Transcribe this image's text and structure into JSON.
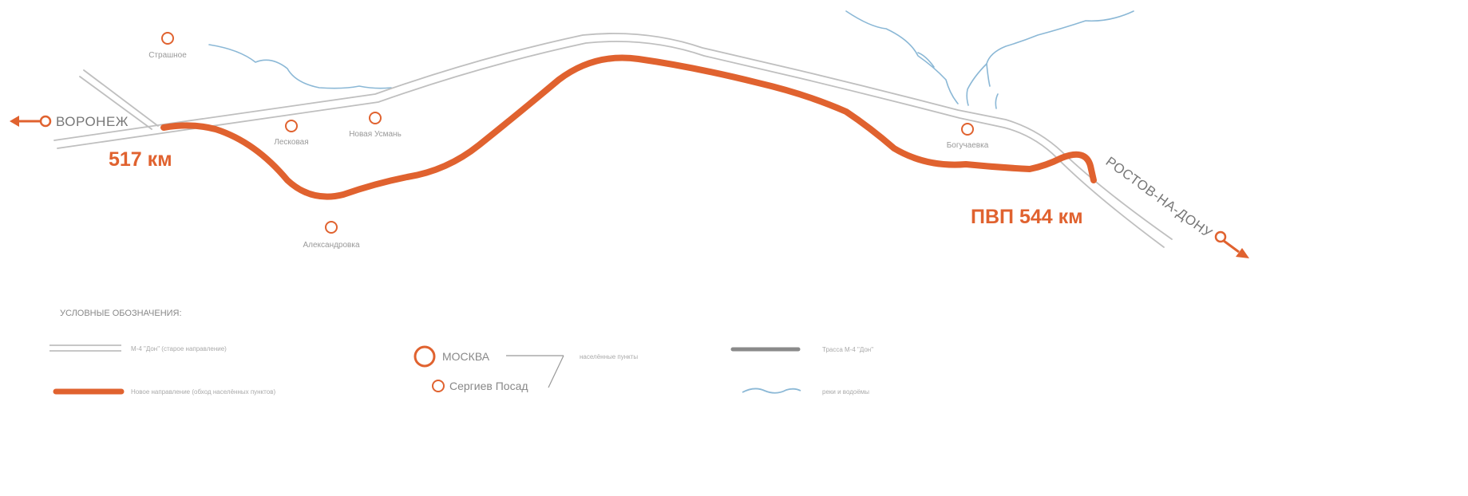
{
  "map": {
    "cities": {
      "voronezh": "ВОРОНЕЖ",
      "rostov": "РОСТОВ-НА-ДОНУ"
    },
    "towns": {
      "t1": "Страшное",
      "t2": "Лесковая",
      "t3": "Новая Усмань",
      "t4": "Александровка",
      "t5": "Богучаевка"
    },
    "km_markers": {
      "start": "517 км",
      "end": "ПВП 544 км"
    }
  },
  "legend": {
    "title": "УСЛОВНЫЕ ОБОЗНАЧЕНИЯ:",
    "old_road": "М-4 \"Дон\" (старое направление)",
    "new_road": "Новое направление (обход населённых пунктов)",
    "city_big": "МОСКВА",
    "city_small": "Сергиев Посад",
    "settlements": "населённые пункты",
    "highway": "Трасса М-4 \"Дон\"",
    "rivers": "реки и водоёмы"
  },
  "colors": {
    "route": "#e0622f",
    "road": "#bfbfbf",
    "river": "#8bb8d6",
    "highway": "#8a8a8a"
  }
}
